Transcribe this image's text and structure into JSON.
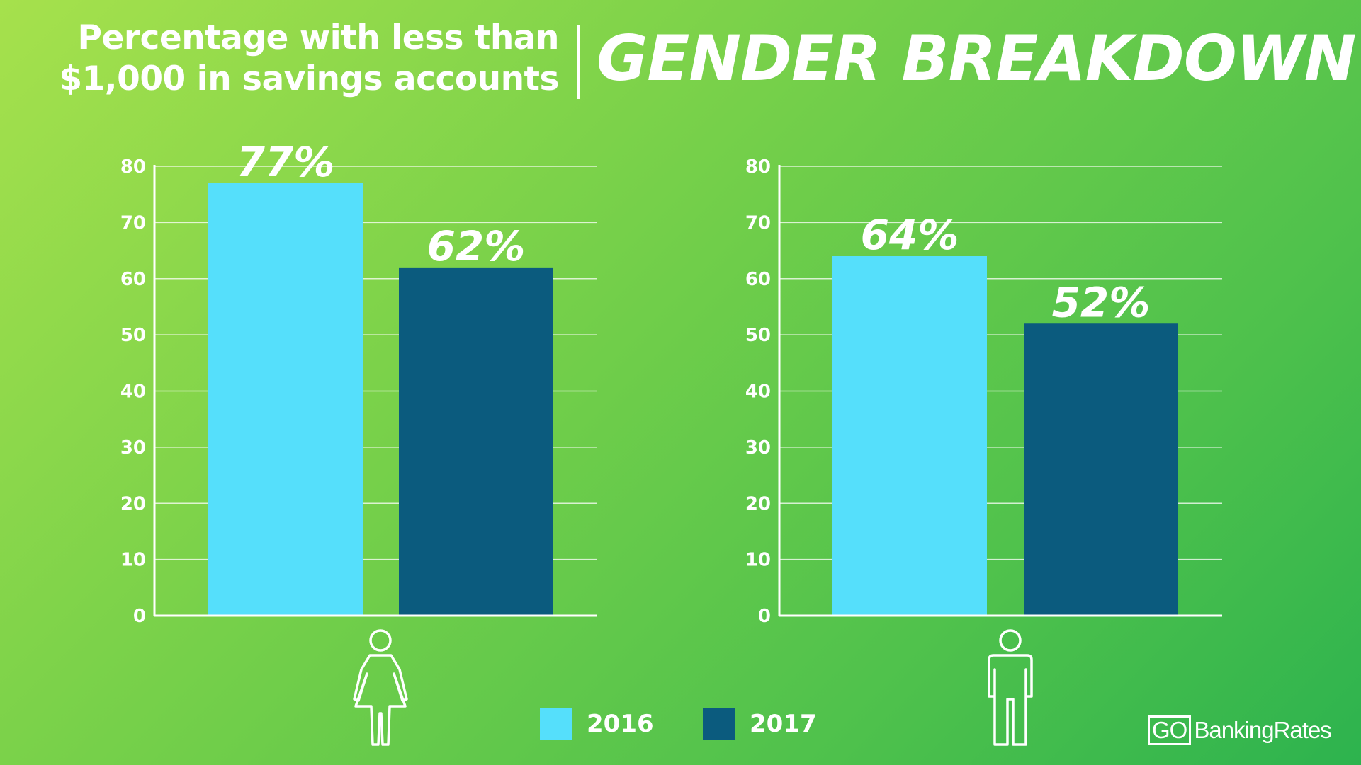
{
  "header": {
    "subtitle": "Percentage with less than\n$1,000 in savings accounts",
    "title": "GENDER BREAKDOWN"
  },
  "colors": {
    "series_2016": "#55dffb",
    "series_2017": "#0b5b7e",
    "text": "#ffffff"
  },
  "chart_data": [
    {
      "type": "bar",
      "group_icon": "woman-icon",
      "categories": [
        "2016",
        "2017"
      ],
      "values": [
        77,
        62
      ],
      "data_labels": [
        "77%",
        "62%"
      ],
      "ylim": [
        0,
        80
      ],
      "yticks": [
        0,
        10,
        20,
        30,
        40,
        50,
        60,
        70,
        80
      ],
      "grid": true,
      "title": "",
      "xlabel": "",
      "ylabel": ""
    },
    {
      "type": "bar",
      "group_icon": "man-icon",
      "categories": [
        "2016",
        "2017"
      ],
      "values": [
        64,
        52
      ],
      "data_labels": [
        "64%",
        "52%"
      ],
      "ylim": [
        0,
        80
      ],
      "yticks": [
        0,
        10,
        20,
        30,
        40,
        50,
        60,
        70,
        80
      ],
      "grid": true,
      "title": "",
      "xlabel": "",
      "ylabel": ""
    }
  ],
  "legend": {
    "placement": "bottom-center",
    "items": [
      {
        "label": "2016",
        "color": "#55dffb"
      },
      {
        "label": "2017",
        "color": "#0b5b7e"
      }
    ]
  },
  "brand": {
    "go": "GO",
    "rest": "BankingRates"
  }
}
